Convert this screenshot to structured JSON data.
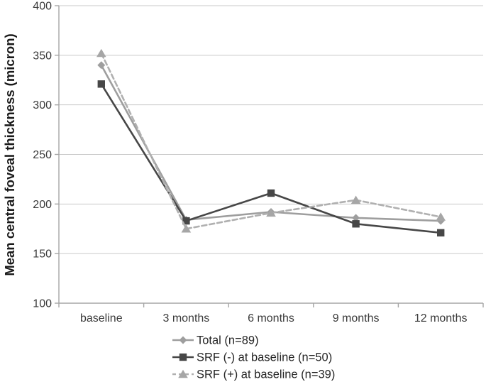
{
  "chart_data": {
    "type": "line",
    "title": "",
    "xlabel": "",
    "ylabel": "Mean central foveal thickness (micron)",
    "categories": [
      "baseline",
      "3 months",
      "6 months",
      "9 months",
      "12 months"
    ],
    "series": [
      {
        "name": "Total (n=89)",
        "marker": "diamond",
        "line_style": "solid",
        "color": "#9e9e9e",
        "values": [
          340,
          184,
          192,
          186,
          183
        ]
      },
      {
        "name": "SRF (-) at baseline (n=50)",
        "marker": "square",
        "line_style": "solid",
        "color": "#474747",
        "values": [
          321,
          183,
          211,
          180,
          171
        ]
      },
      {
        "name": "SRF (+) at baseline (n=39)",
        "marker": "triangle",
        "line_style": "dashed",
        "color": "#b0b0b0",
        "marker_color": "#a6a6a6",
        "values": [
          352,
          175,
          191,
          204,
          187
        ]
      }
    ],
    "ylim": [
      100,
      400
    ],
    "yticks": [
      100,
      150,
      200,
      250,
      300,
      350,
      400
    ],
    "grid": "horizontal",
    "legend_position": "bottom",
    "colors": {
      "background": "#ffffff",
      "gridline": "#c9c9c9",
      "axis": "#a6a6a6",
      "tick_label": "#3a3a3a",
      "axis_title": "#1a1a1a",
      "legend_text": "#262626"
    }
  }
}
